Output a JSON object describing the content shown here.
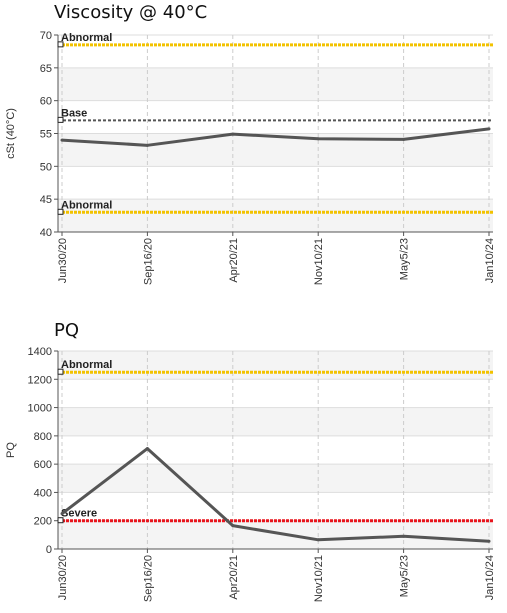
{
  "chart_data": [
    {
      "type": "line",
      "title": "Viscosity @ 40°C",
      "ylabel": "cSt (40°C)",
      "xlabel": "",
      "ylim": [
        40,
        70
      ],
      "yticks": [
        40,
        45,
        50,
        55,
        60,
        65,
        70
      ],
      "categories": [
        "Jun30/20",
        "Sep16/20",
        "Apr20/21",
        "Nov10/21",
        "May5/23",
        "Jan10/24"
      ],
      "series": [
        {
          "values": [
            54.0,
            53.2,
            54.9,
            54.2,
            54.1,
            55.7
          ],
          "color": "#555555"
        }
      ],
      "reference_lines": [
        {
          "label": "Abnormal",
          "value": 68.5,
          "color": "#f2c200"
        },
        {
          "label": "Base",
          "value": 57.0,
          "color": "#555555"
        },
        {
          "label": "Abnormal",
          "value": 43.0,
          "color": "#f2c200"
        }
      ],
      "grid": true
    },
    {
      "type": "line",
      "title": "PQ",
      "ylabel": "PQ",
      "xlabel": "",
      "ylim": [
        0,
        1400
      ],
      "yticks": [
        0,
        200,
        400,
        600,
        800,
        1000,
        1200,
        1400
      ],
      "categories": [
        "Jun30/20",
        "Sep16/20",
        "Apr20/21",
        "Nov10/21",
        "May5/23",
        "Jan10/24"
      ],
      "series": [
        {
          "values": [
            250,
            710,
            165,
            65,
            90,
            55
          ],
          "color": "#555555"
        }
      ],
      "reference_lines": [
        {
          "label": "Abnormal",
          "value": 1250,
          "color": "#f2c200"
        },
        {
          "label": "Severe",
          "value": 200,
          "color": "#e8141c"
        }
      ],
      "grid": true
    }
  ]
}
